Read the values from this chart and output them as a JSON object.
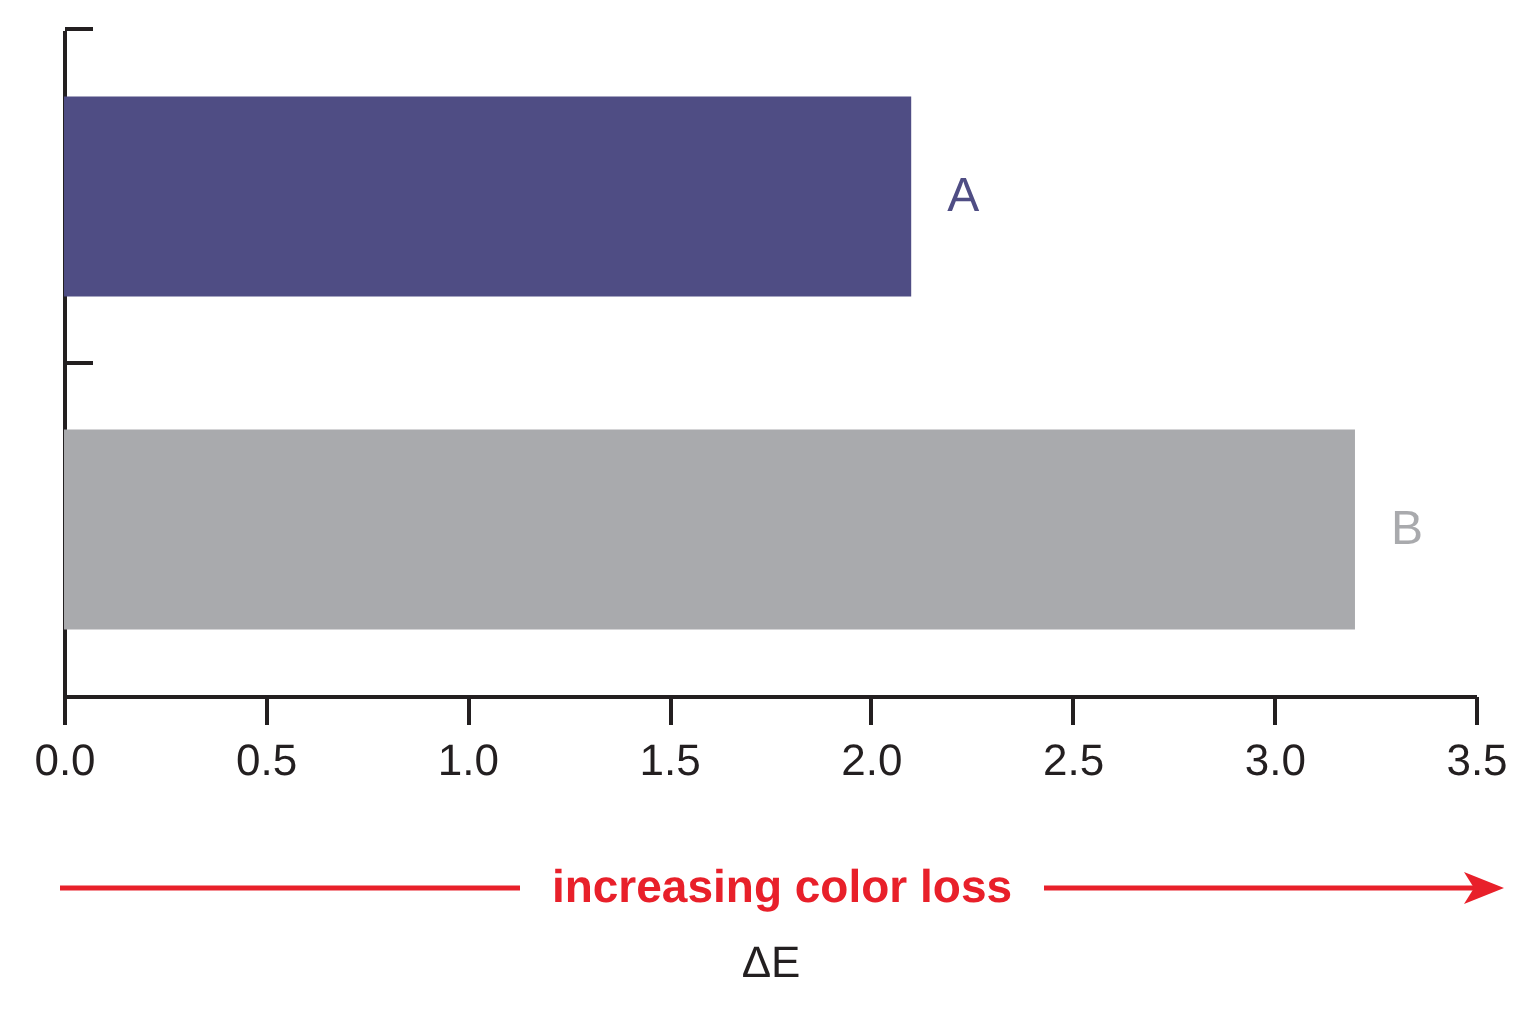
{
  "chart_data": {
    "type": "bar",
    "orientation": "horizontal",
    "xlabel": "ΔE",
    "categories": [
      "A",
      "B"
    ],
    "values": [
      2.1,
      3.2
    ],
    "colors": [
      "#4f4d84",
      "#a9aaad"
    ],
    "xlim": [
      0,
      3.5
    ],
    "xticks": [
      {
        "value": 0,
        "label": "0.0"
      },
      {
        "value": 0.5,
        "label": "0.5"
      },
      {
        "value": 1,
        "label": "1.0"
      },
      {
        "value": 1.5,
        "label": "1.5"
      },
      {
        "value": 2,
        "label": "2.0"
      },
      {
        "value": 2.5,
        "label": "2.5"
      },
      {
        "value": 3,
        "label": "3.0"
      },
      {
        "value": 3.5,
        "label": "3.5"
      }
    ],
    "annotations": [
      "increasing color loss"
    ],
    "grid": false
  }
}
